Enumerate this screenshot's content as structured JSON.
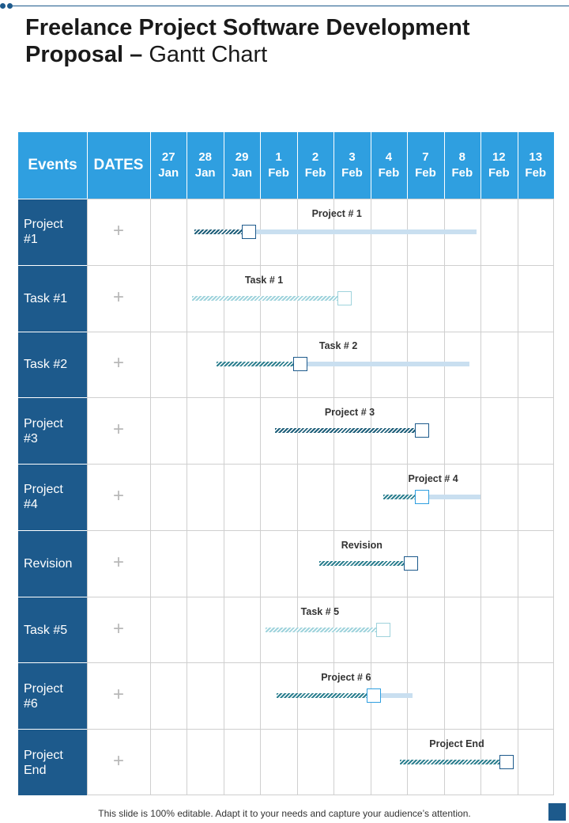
{
  "title": {
    "main": "Freelance Project Software Development Proposal – ",
    "sub": "Gantt Chart"
  },
  "header": {
    "events": "Events",
    "dates": "DATES",
    "date_columns": [
      "27\nJan",
      "28\nJan",
      "29\nJan",
      "1\nFeb",
      "2\nFeb",
      "3\nFeb",
      "4\nFeb",
      "7\nFeb",
      "8\nFeb",
      "12\nFeb",
      "13\nFeb"
    ]
  },
  "rows": [
    {
      "event": "Project #1",
      "date_placeholder": "+"
    },
    {
      "event": "Task #1",
      "date_placeholder": "+"
    },
    {
      "event": "Task #2",
      "date_placeholder": "+"
    },
    {
      "event": "Project #3",
      "date_placeholder": "+"
    },
    {
      "event": "Project #4",
      "date_placeholder": "+"
    },
    {
      "event": "Revision",
      "date_placeholder": "+"
    },
    {
      "event": "Task #5",
      "date_placeholder": "+"
    },
    {
      "event": "Project #6",
      "date_placeholder": "+"
    },
    {
      "event": "Project End",
      "date_placeholder": "+"
    }
  ],
  "chart_data": {
    "type": "gantt",
    "columns": [
      "27 Jan",
      "28 Jan",
      "29 Jan",
      "1 Feb",
      "2 Feb",
      "3 Feb",
      "4 Feb",
      "7 Feb",
      "8 Feb",
      "12 Feb",
      "13 Feb"
    ],
    "bars": [
      {
        "label": "Project # 1",
        "start_col": 1.2,
        "marker_col": 2.7,
        "end_col": 8.9,
        "style": "dark"
      },
      {
        "label": "Task # 1",
        "start_col": 1.15,
        "marker_col": 5.3,
        "end_col": 5.3,
        "style": "light"
      },
      {
        "label": "Task # 2",
        "start_col": 1.8,
        "marker_col": 4.1,
        "end_col": 8.7,
        "style": "teal"
      },
      {
        "label": "Project # 3",
        "start_col": 3.4,
        "marker_col": 7.4,
        "end_col": 7.4,
        "style": "darkteal"
      },
      {
        "label": "Project # 4",
        "start_col": 6.35,
        "marker_col": 7.4,
        "end_col": 9.0,
        "style": "mid"
      },
      {
        "label": "Revision",
        "start_col": 4.6,
        "marker_col": 7.1,
        "end_col": 7.1,
        "style": "teal"
      },
      {
        "label": "Task # 5",
        "start_col": 3.15,
        "marker_col": 6.35,
        "end_col": 6.35,
        "style": "light"
      },
      {
        "label": "Project # 6",
        "start_col": 3.45,
        "marker_col": 6.1,
        "end_col": 7.15,
        "style": "mid"
      },
      {
        "label": "Project End",
        "start_col": 6.8,
        "marker_col": 9.7,
        "end_col": 9.7,
        "style": "teal"
      }
    ]
  },
  "colors": {
    "header": "#2f9fe0",
    "event_col": "#1d5a8c",
    "track": "#c9dff0",
    "hatch_dark": "#1f5f7a",
    "hatch_teal": "#2c7f8f",
    "hatch_light": "#9fd3dc"
  },
  "footer": {
    "text": "This slide is 100% editable. Adapt it to your needs and capture your audience’s attention."
  }
}
